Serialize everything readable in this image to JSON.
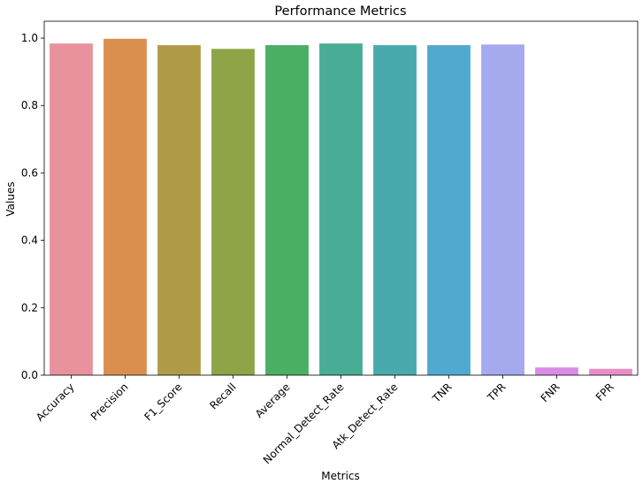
{
  "chart_data": {
    "type": "bar",
    "title": "Performance Metrics",
    "xlabel": "Metrics",
    "ylabel": "Values",
    "ylim": [
      0,
      1.05
    ],
    "yticks": [
      0.0,
      0.2,
      0.4,
      0.6,
      0.8,
      1.0
    ],
    "ytick_labels": [
      "0.0",
      "0.2",
      "0.4",
      "0.6",
      "0.8",
      "1.0"
    ],
    "categories": [
      "Accuracy",
      "Precision",
      "F1_Score",
      "Recall",
      "Average",
      "Normal_Detect_Rate",
      "Atk_Detect_Rate",
      "TNR",
      "TPR",
      "FNR",
      "FPR"
    ],
    "values": [
      0.984,
      0.998,
      0.979,
      0.968,
      0.979,
      0.984,
      0.979,
      0.979,
      0.981,
      0.023,
      0.019
    ],
    "colors": [
      "#e8929e",
      "#da8f4f",
      "#b09c47",
      "#8ea446",
      "#4aaf63",
      "#48ad94",
      "#49aaad",
      "#51a9d1",
      "#a5a9ee",
      "#d98be6",
      "#e68fc8"
    ],
    "grid": false,
    "legend": "none"
  }
}
